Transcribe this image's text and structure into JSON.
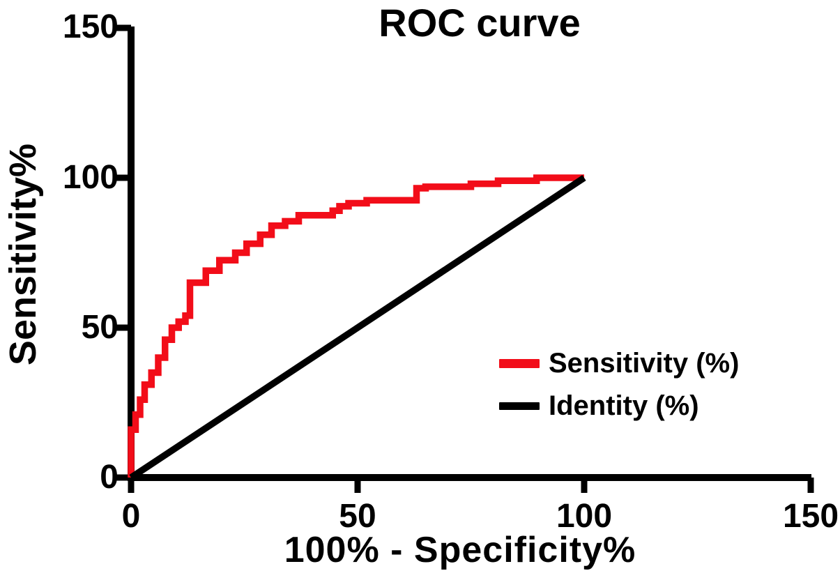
{
  "title": "ROC curve",
  "axes": {
    "x_label": "100% - Specificity%",
    "y_label": "Sensitivity%",
    "x_tick_labels": [
      "0",
      "50",
      "100",
      "150"
    ],
    "y_tick_labels": [
      "0",
      "50",
      "100",
      "150"
    ]
  },
  "legend": {
    "items": [
      {
        "label": "Sensitivity (%)",
        "color": "#f20d19"
      },
      {
        "label": "Identity (%)",
        "color": "#000000"
      }
    ]
  },
  "colors": {
    "curve_red": "#f20d19",
    "axis_black": "#000000",
    "background": "#ffffff"
  },
  "chart_data": {
    "type": "line",
    "title": "ROC curve",
    "xlabel": "100% - Specificity%",
    "ylabel": "Sensitivity%",
    "xlim": [
      0,
      150
    ],
    "ylim": [
      0,
      150
    ],
    "x_ticks": [
      0,
      50,
      100,
      150
    ],
    "y_ticks": [
      0,
      50,
      100,
      150
    ],
    "grid": false,
    "legend_position": "right-middle",
    "series": [
      {
        "name": "Sensitivity (%)",
        "color": "#f20d19",
        "style": "step",
        "stroke_width": 9.5,
        "points": [
          [
            0,
            0
          ],
          [
            0,
            16
          ],
          [
            1,
            16
          ],
          [
            1,
            21
          ],
          [
            2,
            21
          ],
          [
            2,
            26
          ],
          [
            3,
            26
          ],
          [
            3,
            31
          ],
          [
            4.5,
            31
          ],
          [
            4.5,
            35
          ],
          [
            6,
            35
          ],
          [
            6,
            40
          ],
          [
            7.5,
            40
          ],
          [
            7.5,
            46
          ],
          [
            9,
            46
          ],
          [
            9,
            50
          ],
          [
            10.5,
            50
          ],
          [
            10.5,
            52
          ],
          [
            12,
            52
          ],
          [
            12,
            54
          ],
          [
            13,
            54
          ],
          [
            13,
            65
          ],
          [
            16.5,
            65
          ],
          [
            16.5,
            69
          ],
          [
            19.5,
            69
          ],
          [
            19.5,
            72.5
          ],
          [
            23,
            72.5
          ],
          [
            23,
            75
          ],
          [
            25.5,
            75
          ],
          [
            25.5,
            78
          ],
          [
            28.5,
            78
          ],
          [
            28.5,
            81
          ],
          [
            31,
            81
          ],
          [
            31,
            84
          ],
          [
            34,
            84
          ],
          [
            34,
            85.5
          ],
          [
            37,
            85.5
          ],
          [
            37,
            87.5
          ],
          [
            40,
            87.5
          ],
          [
            44.5,
            87.5
          ],
          [
            44.5,
            89
          ],
          [
            46,
            89
          ],
          [
            46,
            90.5
          ],
          [
            48,
            90.5
          ],
          [
            48,
            91.5
          ],
          [
            52,
            91.5
          ],
          [
            52,
            92.5
          ],
          [
            63,
            92.5
          ],
          [
            63,
            96.5
          ],
          [
            65,
            96.5
          ],
          [
            65,
            97
          ],
          [
            75,
            97
          ],
          [
            75,
            98
          ],
          [
            81,
            98
          ],
          [
            81,
            99
          ],
          [
            89.5,
            99
          ],
          [
            89.5,
            100
          ],
          [
            100,
            100
          ]
        ]
      },
      {
        "name": "Identity (%)",
        "color": "#000000",
        "style": "line",
        "stroke_width": 9.5,
        "points": [
          [
            0,
            0
          ],
          [
            100,
            100
          ]
        ]
      }
    ]
  }
}
